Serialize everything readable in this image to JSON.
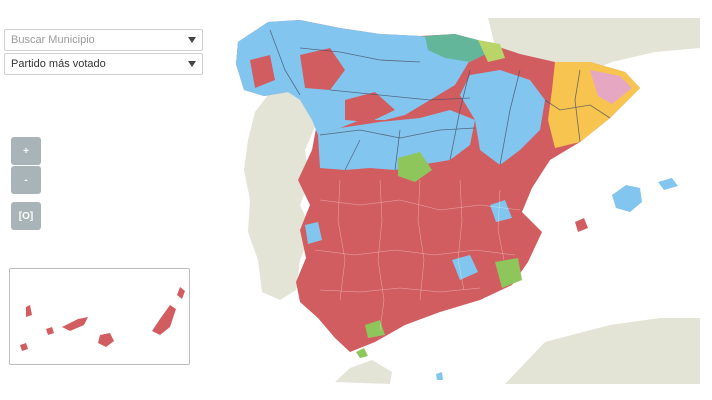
{
  "controls": {
    "search_placeholder": "Buscar Municipio",
    "party_select_value": "Partido más votado"
  },
  "zoom": {
    "in_label": "+",
    "out_label": "-",
    "reset_label": "[O]"
  },
  "map": {
    "colors": {
      "sea": "#ffffff",
      "land_outside": "#e3e4d6",
      "red_party": "#d25d60",
      "blue_party": "#82c6ef",
      "orange_party": "#f7c44f",
      "green_party": "#8ec65c",
      "teal_party": "#64b69a",
      "pink_party": "#e6a7c3",
      "borders": "#ffffff",
      "province_lines": "#4a4f66"
    },
    "regions_shown": [
      "Spain (peninsula)",
      "Balearic Islands",
      "Canary Islands inset",
      "Ceuta",
      "Melilla"
    ]
  }
}
